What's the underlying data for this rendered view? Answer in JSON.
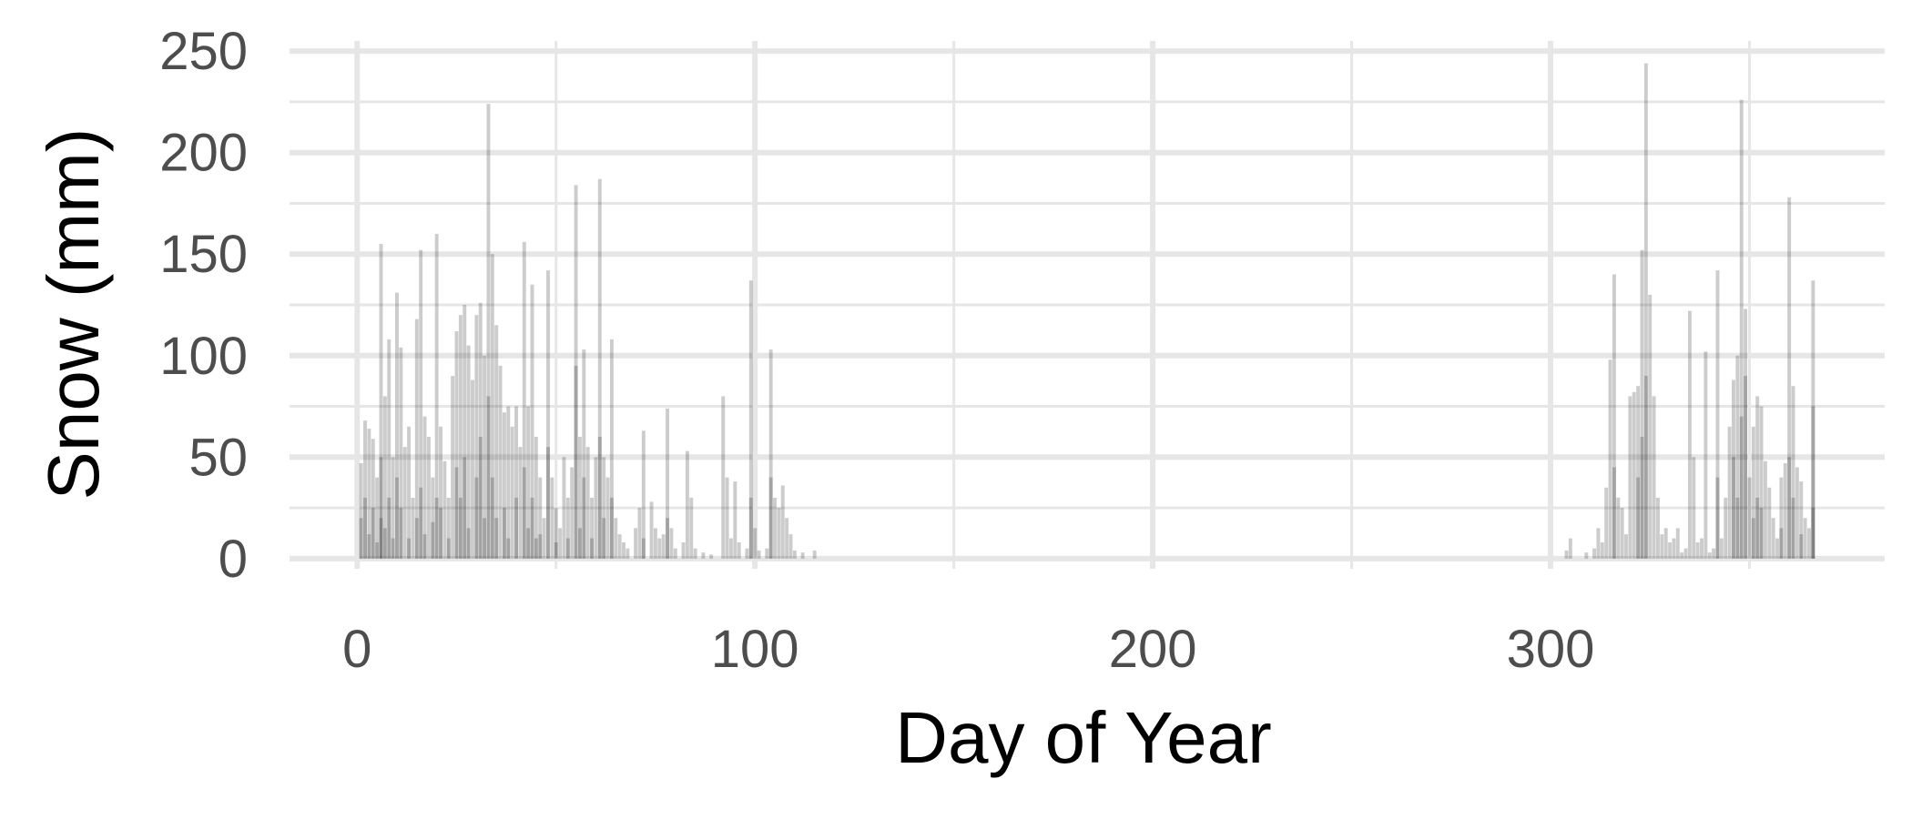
{
  "chart_data": {
    "type": "bar",
    "title": "",
    "xlabel": "Day of Year",
    "ylabel": "Snow (mm)",
    "xlim": [
      -17,
      384
    ],
    "ylim": [
      -5,
      255
    ],
    "x_ticks": [
      0,
      100,
      200,
      300
    ],
    "x_tick_labels": [
      "0",
      "100",
      "200",
      "300"
    ],
    "y_ticks": [
      0,
      50,
      100,
      150,
      200,
      250
    ],
    "y_tick_labels": [
      "0",
      "50",
      "100",
      "150",
      "200",
      "250"
    ],
    "grid": true,
    "bar_color": "#000000",
    "bar_opacity": 0.2,
    "note_overlap": "Many years are overlaid per day; each entry below is one semi-transparent bar [day, snow_mm].",
    "bars": [
      [
        1,
        47
      ],
      [
        1,
        20
      ],
      [
        2,
        68
      ],
      [
        2,
        30
      ],
      [
        3,
        64
      ],
      [
        3,
        12
      ],
      [
        4,
        59
      ],
      [
        4,
        25
      ],
      [
        5,
        40
      ],
      [
        5,
        8
      ],
      [
        6,
        155
      ],
      [
        6,
        50
      ],
      [
        6,
        20
      ],
      [
        7,
        80
      ],
      [
        7,
        15
      ],
      [
        8,
        108
      ],
      [
        8,
        30
      ],
      [
        9,
        50
      ],
      [
        9,
        10
      ],
      [
        10,
        131
      ],
      [
        10,
        40
      ],
      [
        11,
        104
      ],
      [
        11,
        25
      ],
      [
        12,
        55
      ],
      [
        13,
        65
      ],
      [
        13,
        10
      ],
      [
        14,
        30
      ],
      [
        15,
        118
      ],
      [
        15,
        20
      ],
      [
        16,
        152
      ],
      [
        16,
        35
      ],
      [
        17,
        70
      ],
      [
        17,
        12
      ],
      [
        18,
        60
      ],
      [
        19,
        40
      ],
      [
        19,
        18
      ],
      [
        20,
        160
      ],
      [
        20,
        30
      ],
      [
        21,
        65
      ],
      [
        21,
        25
      ],
      [
        22,
        48
      ],
      [
        23,
        30
      ],
      [
        23,
        10
      ],
      [
        24,
        90
      ],
      [
        25,
        112
      ],
      [
        25,
        45
      ],
      [
        26,
        120
      ],
      [
        26,
        30
      ],
      [
        27,
        125
      ],
      [
        27,
        50
      ],
      [
        28,
        105
      ],
      [
        28,
        15
      ],
      [
        29,
        88
      ],
      [
        30,
        120
      ],
      [
        30,
        40
      ],
      [
        31,
        126
      ],
      [
        31,
        60
      ],
      [
        32,
        100
      ],
      [
        32,
        20
      ],
      [
        33,
        224
      ],
      [
        33,
        80
      ],
      [
        34,
        150
      ],
      [
        34,
        40
      ],
      [
        35,
        115
      ],
      [
        35,
        20
      ],
      [
        36,
        95
      ],
      [
        37,
        72
      ],
      [
        37,
        25
      ],
      [
        38,
        75
      ],
      [
        38,
        10
      ],
      [
        39,
        65
      ],
      [
        40,
        75
      ],
      [
        40,
        30
      ],
      [
        41,
        55
      ],
      [
        42,
        156
      ],
      [
        42,
        45
      ],
      [
        43,
        75
      ],
      [
        43,
        15
      ],
      [
        44,
        135
      ],
      [
        44,
        30
      ],
      [
        45,
        60
      ],
      [
        45,
        10
      ],
      [
        46,
        40
      ],
      [
        46,
        12
      ],
      [
        47,
        20
      ],
      [
        48,
        142
      ],
      [
        48,
        55
      ],
      [
        49,
        40
      ],
      [
        50,
        25
      ],
      [
        50,
        8
      ],
      [
        51,
        15
      ],
      [
        52,
        50
      ],
      [
        53,
        30
      ],
      [
        53,
        10
      ],
      [
        54,
        45
      ],
      [
        55,
        184
      ],
      [
        55,
        95
      ],
      [
        56,
        60
      ],
      [
        56,
        15
      ],
      [
        57,
        103
      ],
      [
        57,
        40
      ],
      [
        58,
        55
      ],
      [
        59,
        30
      ],
      [
        59,
        10
      ],
      [
        60,
        50
      ],
      [
        61,
        187
      ],
      [
        61,
        60
      ],
      [
        62,
        50
      ],
      [
        62,
        20
      ],
      [
        63,
        40
      ],
      [
        64,
        108
      ],
      [
        64,
        30
      ],
      [
        65,
        20
      ],
      [
        66,
        12
      ],
      [
        67,
        8
      ],
      [
        68,
        5
      ],
      [
        70,
        15
      ],
      [
        71,
        25
      ],
      [
        72,
        63
      ],
      [
        72,
        10
      ],
      [
        74,
        28
      ],
      [
        75,
        15
      ],
      [
        76,
        10
      ],
      [
        77,
        12
      ],
      [
        78,
        74
      ],
      [
        78,
        20
      ],
      [
        79,
        15
      ],
      [
        80,
        5
      ],
      [
        82,
        8
      ],
      [
        83,
        53
      ],
      [
        84,
        30
      ],
      [
        85,
        5
      ],
      [
        87,
        3
      ],
      [
        89,
        2
      ],
      [
        92,
        80
      ],
      [
        93,
        40
      ],
      [
        94,
        10
      ],
      [
        95,
        38
      ],
      [
        96,
        8
      ],
      [
        98,
        5
      ],
      [
        99,
        137
      ],
      [
        99,
        30
      ],
      [
        100,
        15
      ],
      [
        101,
        4
      ],
      [
        103,
        5
      ],
      [
        104,
        103
      ],
      [
        104,
        40
      ],
      [
        105,
        30
      ],
      [
        106,
        25
      ],
      [
        107,
        36
      ],
      [
        108,
        20
      ],
      [
        109,
        12
      ],
      [
        110,
        4
      ],
      [
        112,
        3
      ],
      [
        115,
        4
      ],
      [
        304,
        4
      ],
      [
        305,
        10
      ],
      [
        309,
        3
      ],
      [
        311,
        5
      ],
      [
        312,
        15
      ],
      [
        313,
        8
      ],
      [
        314,
        35
      ],
      [
        315,
        98
      ],
      [
        316,
        140
      ],
      [
        316,
        45
      ],
      [
        317,
        30
      ],
      [
        318,
        25
      ],
      [
        319,
        12
      ],
      [
        320,
        80
      ],
      [
        321,
        82
      ],
      [
        322,
        85
      ],
      [
        322,
        40
      ],
      [
        323,
        152
      ],
      [
        323,
        60
      ],
      [
        324,
        244
      ],
      [
        324,
        90
      ],
      [
        325,
        130
      ],
      [
        326,
        80
      ],
      [
        327,
        30
      ],
      [
        328,
        12
      ],
      [
        329,
        15
      ],
      [
        330,
        8
      ],
      [
        331,
        10
      ],
      [
        332,
        15
      ],
      [
        333,
        3
      ],
      [
        334,
        5
      ],
      [
        335,
        122
      ],
      [
        336,
        50
      ],
      [
        337,
        8
      ],
      [
        338,
        10
      ],
      [
        339,
        102
      ],
      [
        340,
        3
      ],
      [
        341,
        5
      ],
      [
        342,
        142
      ],
      [
        342,
        40
      ],
      [
        343,
        10
      ],
      [
        344,
        30
      ],
      [
        345,
        65
      ],
      [
        346,
        88
      ],
      [
        346,
        50
      ],
      [
        347,
        100
      ],
      [
        347,
        30
      ],
      [
        348,
        226
      ],
      [
        348,
        70
      ],
      [
        349,
        123
      ],
      [
        349,
        90
      ],
      [
        350,
        40
      ],
      [
        351,
        65
      ],
      [
        351,
        20
      ],
      [
        352,
        80
      ],
      [
        352,
        30
      ],
      [
        353,
        75
      ],
      [
        353,
        25
      ],
      [
        354,
        48
      ],
      [
        355,
        35
      ],
      [
        356,
        20
      ],
      [
        357,
        10
      ],
      [
        358,
        40
      ],
      [
        358,
        15
      ],
      [
        359,
        47
      ],
      [
        360,
        178
      ],
      [
        360,
        50
      ],
      [
        361,
        85
      ],
      [
        361,
        30
      ],
      [
        362,
        45
      ],
      [
        363,
        38
      ],
      [
        363,
        12
      ],
      [
        364,
        20
      ],
      [
        365,
        15
      ],
      [
        366,
        137
      ],
      [
        366,
        75
      ],
      [
        366,
        25
      ]
    ]
  }
}
